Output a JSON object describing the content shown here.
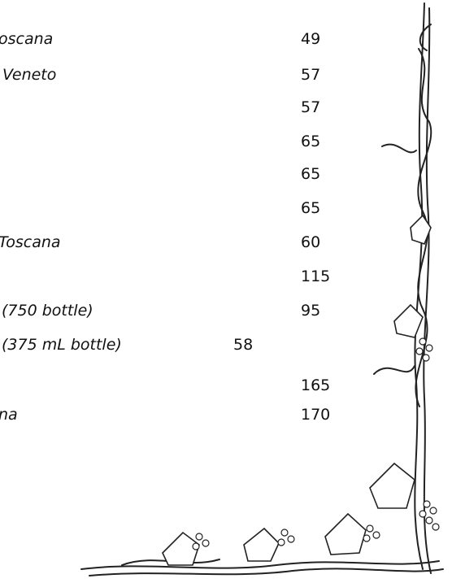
{
  "menu": {
    "rows": [
      {
        "label": "oscana",
        "price": "49"
      },
      {
        "label": "Veneto",
        "price": "57"
      },
      {
        "price": "57"
      },
      {
        "price": "65"
      },
      {
        "price": "65"
      },
      {
        "price": "65"
      },
      {
        "label": "Toscana",
        "price": "60"
      },
      {
        "price": "115"
      },
      {
        "label": "(750 bottle)",
        "price": "95"
      },
      {
        "label": "(375 mL bottle)",
        "price": "58"
      },
      {
        "price": "165"
      },
      {
        "label": "na",
        "price": "170"
      }
    ]
  }
}
